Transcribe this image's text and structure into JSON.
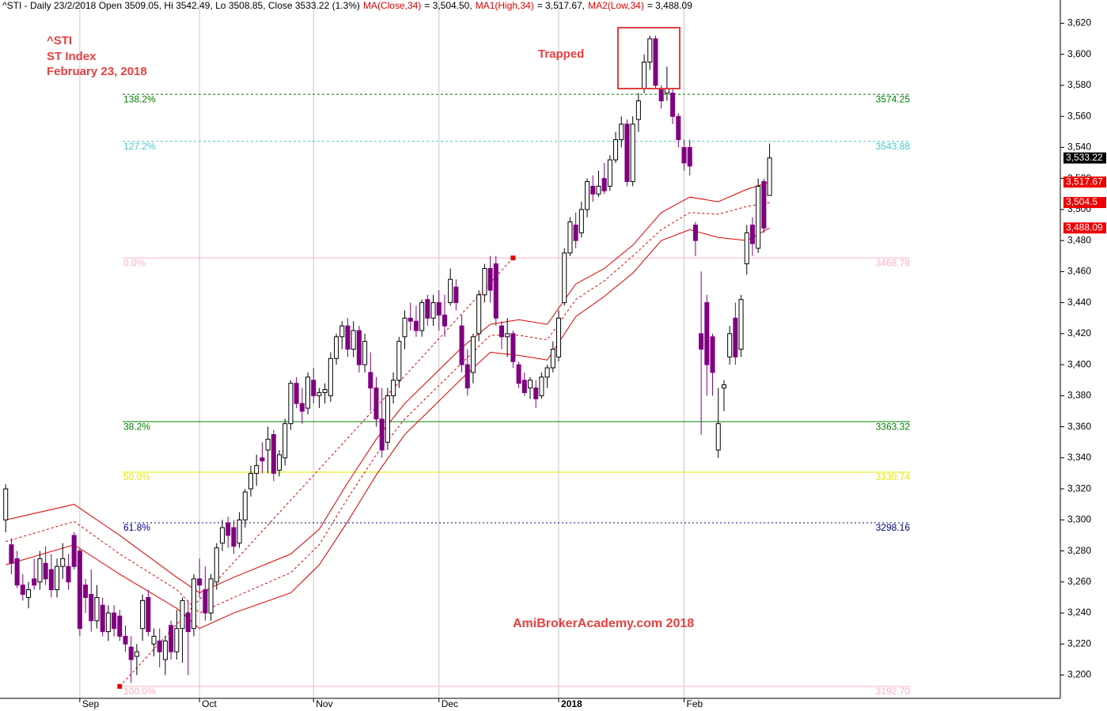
{
  "chart_data": {
    "type": "candlestick",
    "header": [
      {
        "text": "^STI - Daily 23/2/2018 Open 3509.05, Hi 3542.49, Lo 3508.85, Close 3533.22 (1.3%)",
        "color": "#000000"
      },
      {
        "text": "MA(Close,34)",
        "color": "#e00000"
      },
      {
        "text": "= 3,504.50,",
        "color": "#000000"
      },
      {
        "text": "MA1(High,34)",
        "color": "#e00000"
      },
      {
        "text": "= 3,517.67,",
        "color": "#000000"
      },
      {
        "text": "MA2(Low,34)",
        "color": "#e00000"
      },
      {
        "text": "= 3,488.09",
        "color": "#000000"
      }
    ],
    "annotations": [
      "^STI",
      "ST Index",
      "February 23, 2018"
    ],
    "trapped_label": "Trapped",
    "watermark": "AmiBrokerAcademy.com  2018",
    "up_color": "#ffffff",
    "down_color": "#800080",
    "xlim": [
      -1,
      185
    ],
    "xticks": [
      {
        "value": 13,
        "label": "Sep"
      },
      {
        "value": 34,
        "label": "Oct"
      },
      {
        "value": 54,
        "label": "Nov"
      },
      {
        "value": 76,
        "label": "Dec"
      },
      {
        "value": 97,
        "label": "2018"
      },
      {
        "value": 119,
        "label": "Feb"
      }
    ],
    "ylim": [
      3185,
      3635
    ],
    "yticks": [
      {
        "value": 3200,
        "label": "3,200"
      },
      {
        "value": 3220,
        "label": "3,220"
      },
      {
        "value": 3240,
        "label": "3,240"
      },
      {
        "value": 3260,
        "label": "3,260"
      },
      {
        "value": 3280,
        "label": "3,280"
      },
      {
        "value": 3300,
        "label": "3,300"
      },
      {
        "value": 3320,
        "label": "3,320"
      },
      {
        "value": 3340,
        "label": "3,340"
      },
      {
        "value": 3360,
        "label": "3,360"
      },
      {
        "value": 3380,
        "label": "3,380"
      },
      {
        "value": 3400,
        "label": "3,400"
      },
      {
        "value": 3420,
        "label": "3,420"
      },
      {
        "value": 3440,
        "label": "3,440"
      },
      {
        "value": 3460,
        "label": "3,460"
      },
      {
        "value": 3480,
        "label": "3,480"
      },
      {
        "value": 3500,
        "label": "3,500"
      },
      {
        "value": 3520,
        "label": "3,520"
      },
      {
        "value": 3540,
        "label": "3,540"
      },
      {
        "value": 3560,
        "label": "3,560"
      },
      {
        "value": 3580,
        "label": "3,580"
      },
      {
        "value": 3600,
        "label": "3,600"
      },
      {
        "value": 3620,
        "label": "3,620"
      }
    ],
    "ohlc": [
      [
        3300,
        3323,
        3292,
        3320
      ],
      [
        3284,
        3288,
        3265,
        3272
      ],
      [
        3275,
        3280,
        3256,
        3258
      ],
      [
        3258,
        3265,
        3248,
        3252
      ],
      [
        3250,
        3260,
        3243,
        3255
      ],
      [
        3262,
        3275,
        3255,
        3258
      ],
      [
        3260,
        3280,
        3255,
        3275
      ],
      [
        3272,
        3283,
        3258,
        3262
      ],
      [
        3268,
        3278,
        3250,
        3255
      ],
      [
        3255,
        3275,
        3250,
        3270
      ],
      [
        3270,
        3285,
        3262,
        3275
      ],
      [
        3270,
        3278,
        3255,
        3260
      ],
      [
        3290,
        3292,
        3268,
        3270
      ],
      [
        3280,
        3282,
        3225,
        3230
      ],
      [
        3258,
        3262,
        3240,
        3250
      ],
      [
        3252,
        3268,
        3228,
        3235
      ],
      [
        3235,
        3258,
        3230,
        3250
      ],
      [
        3245,
        3250,
        3225,
        3228
      ],
      [
        3228,
        3245,
        3222,
        3240
      ],
      [
        3240,
        3245,
        3225,
        3230
      ],
      [
        3238,
        3242,
        3222,
        3225
      ],
      [
        3225,
        3232,
        3215,
        3220
      ],
      [
        3218,
        3225,
        3195,
        3210
      ],
      [
        3212,
        3220,
        3200,
        3215
      ],
      [
        3230,
        3252,
        3222,
        3248
      ],
      [
        3250,
        3255,
        3225,
        3228
      ],
      [
        3220,
        3230,
        3212,
        3225
      ],
      [
        3222,
        3230,
        3205,
        3215
      ],
      [
        3210,
        3225,
        3200,
        3222
      ],
      [
        3232,
        3235,
        3210,
        3215
      ],
      [
        3215,
        3242,
        3210,
        3230
      ],
      [
        3230,
        3250,
        3208,
        3248
      ],
      [
        3240,
        3248,
        3200,
        3228
      ],
      [
        3230,
        3265,
        3225,
        3262
      ],
      [
        3262,
        3275,
        3250,
        3258
      ],
      [
        3255,
        3270,
        3235,
        3240
      ],
      [
        3240,
        3265,
        3235,
        3262
      ],
      [
        3260,
        3285,
        3255,
        3282
      ],
      [
        3285,
        3300,
        3280,
        3295
      ],
      [
        3298,
        3302,
        3282,
        3290
      ],
      [
        3295,
        3300,
        3278,
        3283
      ],
      [
        3285,
        3305,
        3282,
        3300
      ],
      [
        3300,
        3320,
        3295,
        3318
      ],
      [
        3320,
        3335,
        3315,
        3330
      ],
      [
        3330,
        3342,
        3322,
        3335
      ],
      [
        3340,
        3350,
        3330,
        3338
      ],
      [
        3345,
        3360,
        3330,
        3352
      ],
      [
        3355,
        3358,
        3325,
        3330
      ],
      [
        3332,
        3345,
        3328,
        3342
      ],
      [
        3340,
        3365,
        3335,
        3362
      ],
      [
        3362,
        3390,
        3358,
        3388
      ],
      [
        3388,
        3392,
        3372,
        3375
      ],
      [
        3375,
        3385,
        3362,
        3370
      ],
      [
        3372,
        3395,
        3368,
        3392
      ],
      [
        3390,
        3398,
        3375,
        3380
      ],
      [
        3380,
        3385,
        3372,
        3382
      ],
      [
        3382,
        3388,
        3375,
        3384
      ],
      [
        3380,
        3408,
        3376,
        3404
      ],
      [
        3404,
        3420,
        3400,
        3418
      ],
      [
        3418,
        3428,
        3410,
        3425
      ],
      [
        3425,
        3430,
        3405,
        3410
      ],
      [
        3410,
        3428,
        3405,
        3422
      ],
      [
        3422,
        3425,
        3395,
        3400
      ],
      [
        3400,
        3420,
        3395,
        3415
      ],
      [
        3395,
        3408,
        3370,
        3385
      ],
      [
        3385,
        3392,
        3360,
        3365
      ],
      [
        3365,
        3385,
        3340,
        3345
      ],
      [
        3350,
        3385,
        3345,
        3380
      ],
      [
        3380,
        3395,
        3375,
        3390
      ],
      [
        3390,
        3418,
        3385,
        3415
      ],
      [
        3418,
        3435,
        3410,
        3430
      ],
      [
        3430,
        3440,
        3422,
        3428
      ],
      [
        3428,
        3438,
        3418,
        3422
      ],
      [
        3422,
        3442,
        3418,
        3440
      ],
      [
        3442,
        3445,
        3425,
        3430
      ],
      [
        3430,
        3445,
        3425,
        3440
      ],
      [
        3440,
        3448,
        3422,
        3432
      ],
      [
        3432,
        3445,
        3418,
        3425
      ],
      [
        3440,
        3462,
        3438,
        3455
      ],
      [
        3450,
        3455,
        3435,
        3440
      ],
      [
        3425,
        3432,
        3395,
        3400
      ],
      [
        3400,
        3410,
        3380,
        3385
      ],
      [
        3395,
        3420,
        3388,
        3418
      ],
      [
        3420,
        3448,
        3415,
        3445
      ],
      [
        3445,
        3465,
        3440,
        3462
      ],
      [
        3462,
        3470,
        3440,
        3448
      ],
      [
        3465,
        3470,
        3425,
        3430
      ],
      [
        3425,
        3428,
        3410,
        3418
      ],
      [
        3418,
        3430,
        3405,
        3420
      ],
      [
        3420,
        3422,
        3398,
        3402
      ],
      [
        3400,
        3402,
        3385,
        3388
      ],
      [
        3390,
        3395,
        3380,
        3382
      ],
      [
        3385,
        3392,
        3378,
        3390
      ],
      [
        3385,
        3390,
        3372,
        3378
      ],
      [
        3380,
        3395,
        3378,
        3392
      ],
      [
        3392,
        3400,
        3385,
        3398
      ],
      [
        3398,
        3415,
        3395,
        3410
      ],
      [
        3405,
        3435,
        3402,
        3430
      ],
      [
        3440,
        3475,
        3438,
        3472
      ],
      [
        3472,
        3495,
        3470,
        3492
      ],
      [
        3490,
        3498,
        3475,
        3480
      ],
      [
        3485,
        3505,
        3482,
        3500
      ],
      [
        3500,
        3520,
        3495,
        3518
      ],
      [
        3515,
        3522,
        3505,
        3510
      ],
      [
        3510,
        3525,
        3508,
        3515
      ],
      [
        3520,
        3530,
        3510,
        3512
      ],
      [
        3515,
        3535,
        3512,
        3532
      ],
      [
        3532,
        3550,
        3530,
        3545
      ],
      [
        3545,
        3560,
        3540,
        3555
      ],
      [
        3555,
        3558,
        3515,
        3518
      ],
      [
        3518,
        3560,
        3515,
        3555
      ],
      [
        3558,
        3575,
        3550,
        3570
      ],
      [
        3578,
        3600,
        3575,
        3595
      ],
      [
        3595,
        3612,
        3590,
        3610
      ],
      [
        3610,
        3612,
        3578,
        3580
      ],
      [
        3578,
        3580,
        3565,
        3570
      ],
      [
        3575,
        3592,
        3570,
        3578
      ],
      [
        3575,
        3578,
        3555,
        3560
      ],
      [
        3560,
        3562,
        3540,
        3545
      ],
      [
        3540,
        3545,
        3525,
        3530
      ],
      [
        3540,
        3545,
        3522,
        3528
      ],
      [
        3490,
        3492,
        3470,
        3480
      ],
      [
        3420,
        3460,
        3355,
        3410
      ],
      [
        3440,
        3445,
        3380,
        3400
      ],
      [
        3418,
        3420,
        3380,
        3395
      ],
      [
        3345,
        3385,
        3340,
        3362
      ],
      [
        3385,
        3390,
        3370,
        3387
      ],
      [
        3405,
        3425,
        3400,
        3420
      ],
      [
        3430,
        3440,
        3400,
        3405
      ],
      [
        3410,
        3445,
        3405,
        3442
      ],
      [
        3465,
        3490,
        3458,
        3485
      ],
      [
        3490,
        3495,
        3470,
        3478
      ],
      [
        3475,
        3520,
        3472,
        3515
      ],
      [
        3518,
        3520,
        3485,
        3488
      ],
      [
        3509.05,
        3542.49,
        3508.85,
        3533.22
      ]
    ],
    "series": [
      {
        "name": "MA1(High,34)",
        "color": "#e00000",
        "style": "solid",
        "x": [
          0,
          12,
          20,
          30,
          34,
          40,
          50,
          55,
          60,
          65,
          70,
          75,
          80,
          85,
          90,
          95,
          100,
          105,
          110,
          115,
          120,
          125,
          130,
          134
        ],
        "values": [
          3300,
          3310,
          3290,
          3263,
          3253,
          3263,
          3278,
          3294,
          3324,
          3352,
          3375,
          3393,
          3411,
          3426,
          3429,
          3426,
          3452,
          3462,
          3477,
          3498,
          3508,
          3505,
          3513,
          3517.67
        ]
      },
      {
        "name": "MA(Close,34)",
        "color": "#e00000",
        "style": "dashed",
        "x": [
          0,
          12,
          20,
          30,
          34,
          40,
          50,
          55,
          60,
          65,
          70,
          75,
          80,
          85,
          90,
          95,
          100,
          105,
          110,
          115,
          120,
          125,
          130,
          134
        ],
        "values": [
          3286,
          3299,
          3278,
          3255,
          3240,
          3250,
          3266,
          3284,
          3314,
          3342,
          3365,
          3383,
          3401,
          3419,
          3419,
          3416,
          3442,
          3454,
          3470,
          3487,
          3498,
          3497,
          3502,
          3504.5
        ]
      },
      {
        "name": "MA2(Low,34)",
        "color": "#e00000",
        "style": "solid",
        "x": [
          0,
          12,
          20,
          30,
          34,
          40,
          50,
          55,
          60,
          65,
          70,
          75,
          80,
          85,
          90,
          95,
          100,
          105,
          110,
          115,
          120,
          125,
          130,
          134
        ],
        "values": [
          3271,
          3284,
          3265,
          3243,
          3230,
          3240,
          3253,
          3271,
          3299,
          3329,
          3355,
          3373,
          3391,
          3408,
          3406,
          3403,
          3431,
          3444,
          3459,
          3480,
          3487,
          3482,
          3480,
          3488.09
        ]
      }
    ],
    "trendline": {
      "color": "#e00000",
      "x": [
        20,
        89
      ],
      "values": [
        3192.7,
        3468.78
      ]
    },
    "fib_levels": [
      {
        "label": "138.2%",
        "value": 3574.25,
        "color": "#008000",
        "style": "dashed"
      },
      {
        "label": "127.2%",
        "value": 3543.88,
        "color": "#48c8c8",
        "style": "dashed"
      },
      {
        "label": "0.0%",
        "value": 3468.78,
        "color": "#ffb0c0",
        "style": "solid"
      },
      {
        "label": "38.2%",
        "value": 3363.32,
        "color": "#008000",
        "style": "solid"
      },
      {
        "label": "50.0%",
        "value": 3330.74,
        "color": "#e8e800",
        "style": "solid"
      },
      {
        "label": "61.8%",
        "value": 3298.16,
        "color": "#000080",
        "style": "dotted"
      },
      {
        "label": "100.0%",
        "value": 3192.7,
        "value_label": "3192.70",
        "color": "#ffb0c0",
        "style": "solid"
      }
    ],
    "last_labels": [
      {
        "value": 3533.22,
        "label": "3,533.22",
        "color": "#000000"
      },
      {
        "value": 3517.67,
        "label": "3,517.67",
        "color": "#ee0000"
      },
      {
        "value": 3504.5,
        "label": "3,504.5",
        "color": "#ee0000"
      },
      {
        "value": 3488.09,
        "label": "3,488.09",
        "color": "#ee0000"
      }
    ]
  }
}
